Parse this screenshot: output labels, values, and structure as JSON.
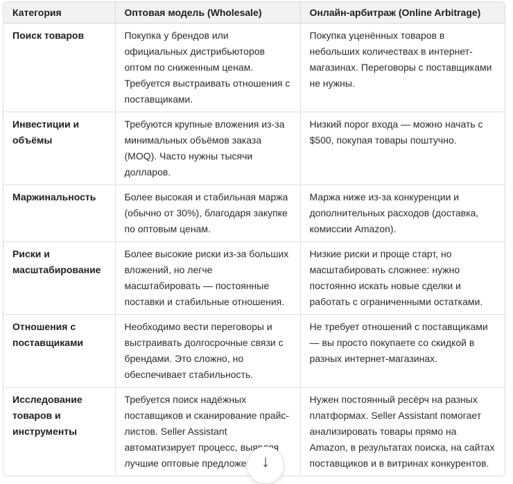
{
  "colors": {
    "header_bg": "#f2f2f2",
    "border": "#e0e0e0",
    "text": "#2b2b2b"
  },
  "table": {
    "headers": [
      "Категория",
      "Оптовая модель (Wholesale)",
      "Онлайн-арбитраж (Online Arbitrage)"
    ],
    "rows": [
      {
        "category": "Поиск товаров",
        "wholesale": "Покупка у брендов или официальных дистрибьюторов оптом по сниженным ценам. Требуется выстраивать отношения с поставщиками.",
        "arbitrage": "Покупка уценённых товаров в небольших количествах в интернет-магазинах. Переговоры с поставщиками не нужны."
      },
      {
        "category": "Инвестиции и объёмы",
        "wholesale": "Требуются крупные вложения из-за минимальных объёмов заказа (MOQ). Часто нужны тысячи долларов.",
        "arbitrage": "Низкий порог входа — можно начать с $500, покупая товары поштучно."
      },
      {
        "category": "Маржинальность",
        "wholesale": "Более высокая и стабильная маржа (обычно от 30%), благодаря закупке по оптовым ценам.",
        "arbitrage": "Маржа ниже из-за конкуренции и дополнительных расходов (доставка, комиссии Amazon)."
      },
      {
        "category": "Риски и масштабирование",
        "wholesale": "Более высокие риски из-за больших вложений, но легче масштабировать — постоянные поставки и стабильные отношения.",
        "arbitrage": "Низкие риски и проще старт, но масштабировать сложнее: нужно постоянно искать новые сделки и работать с ограниченными остатками."
      },
      {
        "category": "Отношения с поставщиками",
        "wholesale": "Необходимо вести переговоры и выстраивать долгосрочные связи с брендами. Это сложно, но обеспечивает стабильность.",
        "arbitrage": "Не требует отношений с поставщиками — вы просто покупаете со скидкой в разных интернет-магазинах."
      },
      {
        "category": "Исследование товаров и инструменты",
        "wholesale": "Требуется поиск надёжных поставщиков и сканирование прайс-листов. Seller Assistant автоматизирует процесс, выявляя лучшие оптовые предложен",
        "arbitrage": "Нужен постоянный ресёрч на разных платформах. Seller Assistant помогает анализировать товары прямо на Amazon, в результатах поиска, на сайтах поставщиков и в витринах конкурентов."
      }
    ]
  },
  "scroll_button": {
    "glyph": "↓"
  }
}
